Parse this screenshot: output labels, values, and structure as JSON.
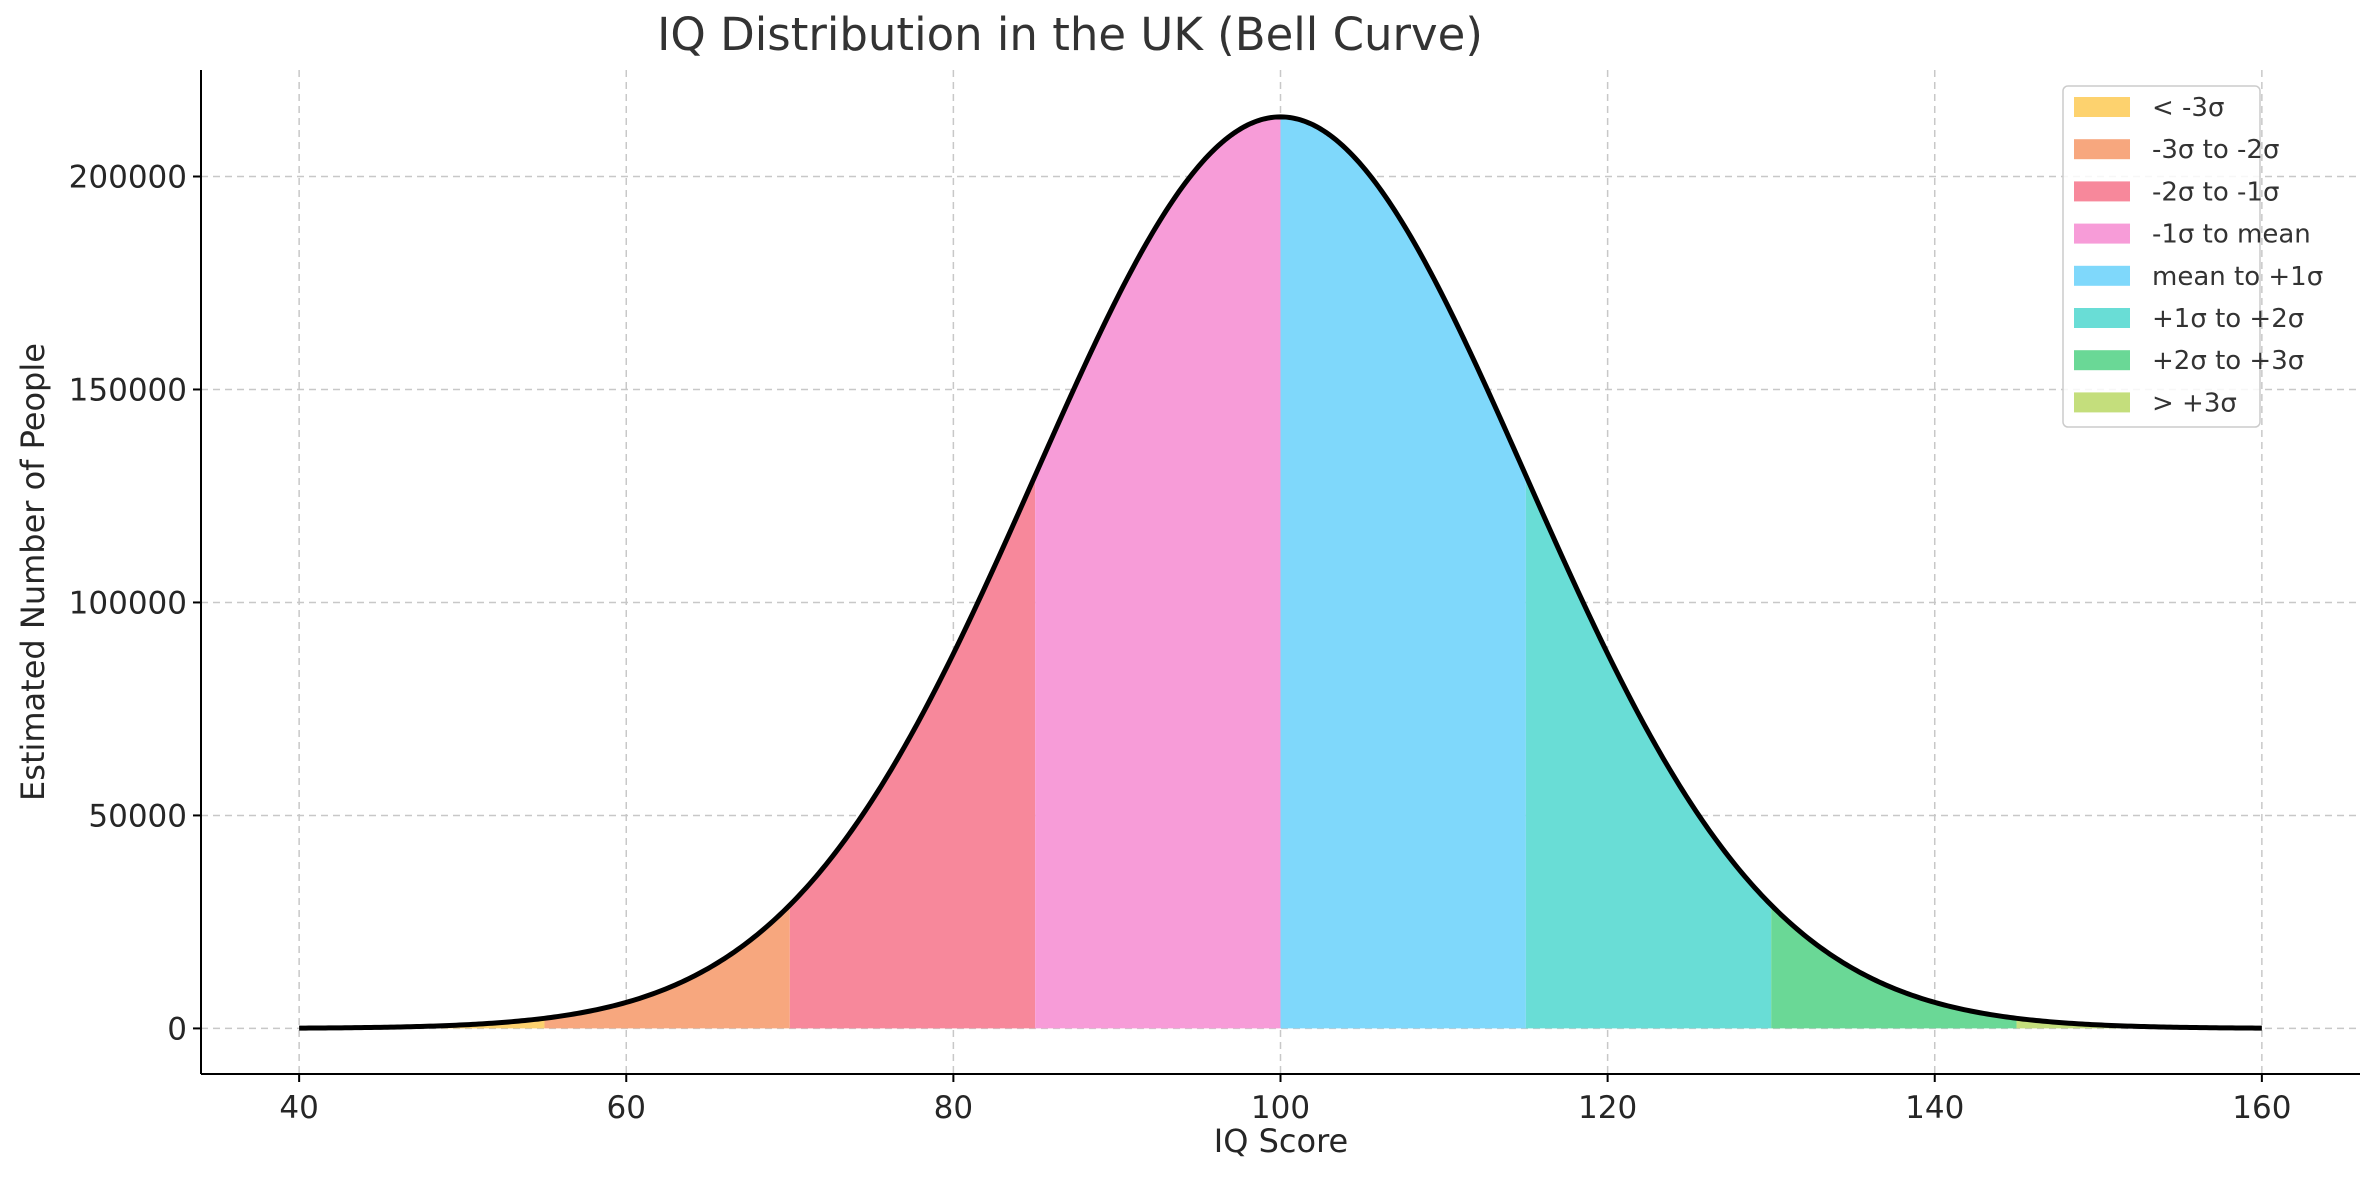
{
  "chart_data": {
    "type": "area",
    "title": "IQ Distribution in the UK (Bell Curve)",
    "xlabel": "IQ Score",
    "ylabel": "Estimated Number of People",
    "xlim": [
      34,
      166
    ],
    "ylim": [
      -10700,
      225000
    ],
    "xticks": [
      40,
      60,
      80,
      100,
      120,
      140,
      160
    ],
    "yticks": [
      0,
      50000,
      100000,
      150000,
      200000
    ],
    "grid": true,
    "legend_position": "top-right",
    "distribution": {
      "mean": 100,
      "sd": 15,
      "peak": 214000,
      "x_range": [
        40,
        160
      ]
    },
    "series": [
      {
        "name": "< -3σ",
        "x_range": [
          40,
          55
        ],
        "color": "#fdd26e"
      },
      {
        "name": "-3σ to -2σ",
        "x_range": [
          55,
          70
        ],
        "color": "#f7a77e"
      },
      {
        "name": "-2σ to -1σ",
        "x_range": [
          70,
          85
        ],
        "color": "#f7889b"
      },
      {
        "name": "-1σ to mean",
        "x_range": [
          85,
          100
        ],
        "color": "#f79cd8"
      },
      {
        "name": "mean to +1σ",
        "x_range": [
          100,
          115
        ],
        "color": "#7fd8fb"
      },
      {
        "name": "+1σ to +2σ",
        "x_range": [
          115,
          130
        ],
        "color": "#69ddd6"
      },
      {
        "name": "+2σ to +3σ",
        "x_range": [
          130,
          145
        ],
        "color": "#6ad896"
      },
      {
        "name": "> +3σ",
        "x_range": [
          145,
          160
        ],
        "color": "#c4de7c"
      }
    ]
  }
}
